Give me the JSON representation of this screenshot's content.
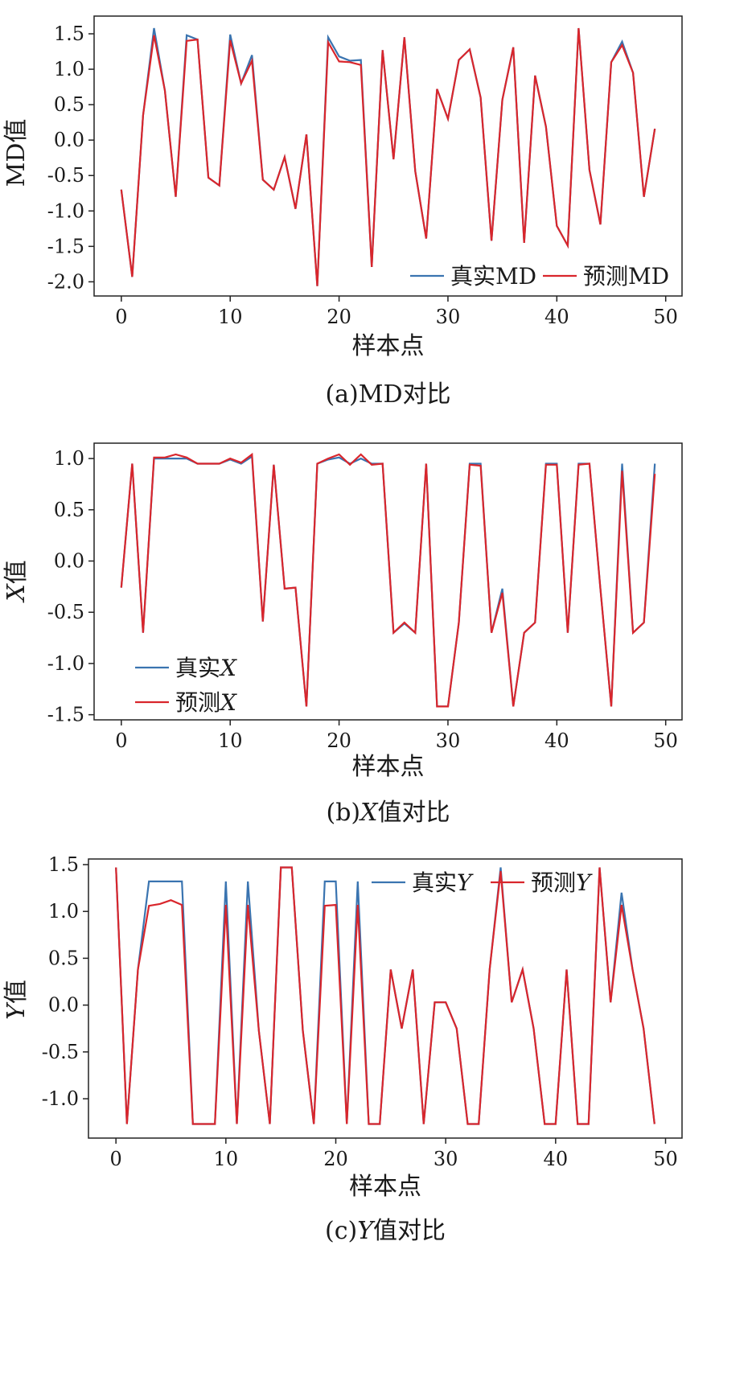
{
  "colors": {
    "true_series": "#3a74b0",
    "pred_series": "#d9262c"
  },
  "chart_data": [
    {
      "type": "line",
      "xlabel": "样本点",
      "ylabel": "MD值",
      "caption": "(a)MD对比",
      "xlim": [
        -2.5,
        51.5
      ],
      "ylim": [
        -2.2,
        1.75
      ],
      "xticks": [
        0,
        10,
        20,
        30,
        40,
        50
      ],
      "xtick_labels": [
        "0",
        "10",
        "20",
        "30",
        "40",
        "50"
      ],
      "yticks": [
        1.5,
        1.0,
        0.5,
        0.0,
        -0.5,
        -1.0,
        -1.5,
        -2.0
      ],
      "ytick_labels": [
        "1.5",
        "1.0",
        "0.5",
        "0.0",
        "-0.5",
        "-1.0",
        "-1.5",
        "-2.0"
      ],
      "legend": {
        "position": "lower-right",
        "layout": "row"
      },
      "x": [
        0,
        1,
        2,
        3,
        4,
        5,
        6,
        7,
        8,
        9,
        10,
        11,
        12,
        13,
        14,
        15,
        16,
        17,
        18,
        19,
        20,
        21,
        22,
        23,
        24,
        25,
        26,
        27,
        28,
        29,
        30,
        31,
        32,
        33,
        34,
        35,
        36,
        37,
        38,
        39,
        40,
        41,
        42,
        43,
        44,
        45,
        46,
        47,
        48,
        49
      ],
      "series": [
        {
          "name": "真实MD",
          "values": [
            -0.7,
            -1.93,
            0.35,
            1.58,
            0.7,
            -0.8,
            1.48,
            1.42,
            -0.53,
            -0.64,
            1.49,
            0.8,
            1.2,
            -0.56,
            -0.7,
            -0.24,
            -0.97,
            0.08,
            -2.06,
            1.45,
            1.18,
            1.12,
            1.13,
            -1.79,
            1.27,
            -0.27,
            1.45,
            -0.44,
            -1.39,
            0.72,
            0.3,
            1.13,
            1.28,
            0.6,
            -1.42,
            0.57,
            1.31,
            -1.45,
            0.91,
            0.19,
            -1.21,
            -1.49,
            1.58,
            -0.42,
            -1.19,
            1.1,
            1.39,
            0.95,
            -0.8,
            0.16
          ]
        },
        {
          "name": "预测MD",
          "values": [
            -0.7,
            -1.93,
            0.35,
            1.48,
            0.7,
            -0.8,
            1.4,
            1.42,
            -0.53,
            -0.64,
            1.41,
            0.8,
            1.12,
            -0.56,
            -0.7,
            -0.24,
            -0.97,
            0.08,
            -2.06,
            1.38,
            1.11,
            1.1,
            1.06,
            -1.79,
            1.27,
            -0.27,
            1.45,
            -0.44,
            -1.39,
            0.72,
            0.3,
            1.13,
            1.28,
            0.6,
            -1.42,
            0.57,
            1.31,
            -1.45,
            0.91,
            0.19,
            -1.21,
            -1.49,
            1.58,
            -0.42,
            -1.19,
            1.1,
            1.34,
            0.95,
            -0.8,
            0.16
          ]
        }
      ]
    },
    {
      "type": "line",
      "xlabel": "样本点",
      "ylabel": "X值",
      "caption": "(b)X值对比",
      "xlim": [
        -2.5,
        51.5
      ],
      "ylim": [
        -1.55,
        1.15
      ],
      "xticks": [
        0,
        10,
        20,
        30,
        40,
        50
      ],
      "xtick_labels": [
        "0",
        "10",
        "20",
        "30",
        "40",
        "50"
      ],
      "yticks": [
        1.0,
        0.5,
        0.0,
        -0.5,
        -1.0,
        -1.5
      ],
      "ytick_labels": [
        "1.0",
        "0.5",
        "0.0",
        "-0.5",
        "-1.0",
        "-1.5"
      ],
      "legend": {
        "position": "lower-left",
        "layout": "column"
      },
      "x": [
        0,
        1,
        2,
        3,
        4,
        5,
        6,
        7,
        8,
        9,
        10,
        11,
        12,
        13,
        14,
        15,
        16,
        17,
        18,
        19,
        20,
        21,
        22,
        23,
        24,
        25,
        26,
        27,
        28,
        29,
        30,
        31,
        32,
        33,
        34,
        35,
        36,
        37,
        38,
        39,
        40,
        41,
        42,
        43,
        44,
        45,
        46,
        47,
        48,
        49
      ],
      "series": [
        {
          "name": "真实X",
          "values": [
            -0.26,
            0.95,
            -0.7,
            1.0,
            1.0,
            1.0,
            1.0,
            0.95,
            0.95,
            0.95,
            0.99,
            0.95,
            1.02,
            -0.59,
            0.94,
            -0.27,
            -0.26,
            -1.42,
            0.95,
            0.99,
            1.01,
            0.95,
            1.0,
            0.95,
            0.95,
            -0.7,
            -0.61,
            -0.7,
            0.95,
            -1.42,
            -1.42,
            -0.6,
            0.95,
            0.95,
            -0.7,
            -0.27,
            -1.42,
            -0.7,
            -0.6,
            0.95,
            0.95,
            -0.7,
            0.95,
            0.95,
            -0.27,
            -1.42,
            0.95,
            -0.7,
            -0.6,
            0.95
          ]
        },
        {
          "name": "预测X",
          "values": [
            -0.26,
            0.95,
            -0.7,
            1.01,
            1.01,
            1.04,
            1.01,
            0.95,
            0.95,
            0.95,
            1.0,
            0.96,
            1.04,
            -0.59,
            0.94,
            -0.27,
            -0.26,
            -1.42,
            0.95,
            1.0,
            1.04,
            0.94,
            1.04,
            0.94,
            0.95,
            -0.7,
            -0.6,
            -0.7,
            0.95,
            -1.42,
            -1.42,
            -0.6,
            0.94,
            0.93,
            -0.7,
            -0.31,
            -1.42,
            -0.7,
            -0.6,
            0.94,
            0.94,
            -0.7,
            0.94,
            0.95,
            -0.27,
            -1.42,
            0.88,
            -0.7,
            -0.6,
            0.85
          ]
        }
      ]
    },
    {
      "type": "line",
      "xlabel": "样本点",
      "ylabel": "Y值",
      "caption": "(c)Y值对比",
      "xlim": [
        -2.5,
        51.5
      ],
      "ylim": [
        -1.42,
        1.56
      ],
      "xticks": [
        0,
        10,
        20,
        30,
        40,
        50
      ],
      "xtick_labels": [
        "0",
        "10",
        "20",
        "30",
        "40",
        "50"
      ],
      "yticks": [
        1.5,
        1.0,
        0.5,
        0.0,
        -0.5,
        -1.0
      ],
      "ytick_labels": [
        "1.5",
        "1.0",
        "0.5",
        "0.0",
        "-0.5",
        "-1.0"
      ],
      "legend": {
        "position": "top-right",
        "layout": "row"
      },
      "x": [
        0,
        1,
        2,
        3,
        4,
        5,
        6,
        7,
        8,
        9,
        10,
        11,
        12,
        13,
        14,
        15,
        16,
        17,
        18,
        19,
        20,
        21,
        22,
        23,
        24,
        25,
        26,
        27,
        28,
        29,
        30,
        31,
        32,
        33,
        34,
        35,
        36,
        37,
        38,
        39,
        40,
        41,
        42,
        43,
        44,
        45,
        46,
        47,
        48,
        49
      ],
      "series": [
        {
          "name": "真实Y",
          "values": [
            1.47,
            -1.27,
            0.38,
            1.32,
            1.32,
            1.32,
            1.32,
            -1.27,
            -1.27,
            -1.27,
            1.32,
            -1.27,
            1.32,
            -0.27,
            -1.27,
            1.47,
            1.47,
            -0.27,
            -1.27,
            1.32,
            1.32,
            -1.27,
            1.32,
            -1.27,
            -1.27,
            0.38,
            -0.25,
            0.38,
            -1.27,
            0.03,
            0.03,
            -0.25,
            -1.27,
            -1.27,
            0.38,
            1.47,
            0.03,
            0.38,
            -0.25,
            -1.27,
            -1.27,
            0.38,
            -1.27,
            -1.27,
            1.47,
            0.03,
            1.2,
            0.38,
            -0.25,
            -1.27
          ]
        },
        {
          "name": "预测Y",
          "values": [
            1.47,
            -1.27,
            0.38,
            1.06,
            1.08,
            1.12,
            1.07,
            -1.27,
            -1.27,
            -1.27,
            1.07,
            -1.27,
            1.07,
            -0.27,
            -1.27,
            1.47,
            1.47,
            -0.27,
            -1.27,
            1.06,
            1.07,
            -1.27,
            1.07,
            -1.27,
            -1.27,
            0.38,
            -0.25,
            0.38,
            -1.27,
            0.03,
            0.03,
            -0.25,
            -1.27,
            -1.27,
            0.38,
            1.43,
            0.03,
            0.38,
            -0.25,
            -1.27,
            -1.27,
            0.38,
            -1.27,
            -1.27,
            1.47,
            0.03,
            1.07,
            0.38,
            -0.25,
            -1.27
          ]
        }
      ]
    }
  ]
}
